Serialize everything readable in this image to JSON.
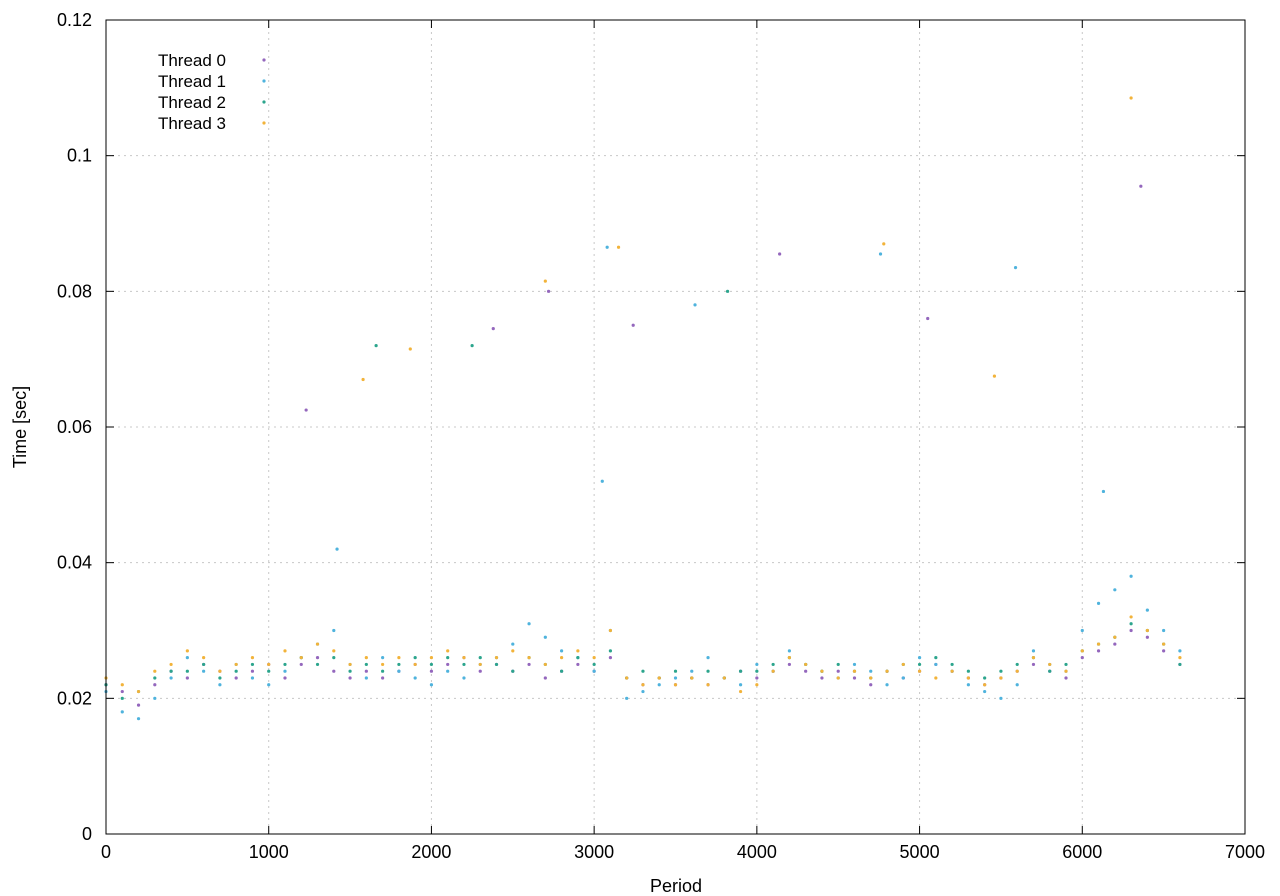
{
  "chart_data": {
    "type": "scatter",
    "xlabel": "Period",
    "ylabel": "Time [sec]",
    "xlim": [
      0,
      7000
    ],
    "ylim": [
      0,
      0.12
    ],
    "xticks": [
      "0",
      "1000",
      "2000",
      "3000",
      "4000",
      "5000",
      "6000",
      "7000"
    ],
    "yticks": [
      "0",
      "0.02",
      "0.04",
      "0.06",
      "0.08",
      "0.1",
      "0.12"
    ],
    "grid": true,
    "legend_position": "top-left",
    "series": [
      {
        "name": "Thread 0",
        "color": "#9467bd",
        "points": [
          [
            0,
            0.022
          ],
          [
            100,
            0.021
          ],
          [
            200,
            0.019
          ],
          [
            300,
            0.022
          ],
          [
            400,
            0.024
          ],
          [
            500,
            0.023
          ],
          [
            600,
            0.025
          ],
          [
            700,
            0.024
          ],
          [
            800,
            0.023
          ],
          [
            900,
            0.024
          ],
          [
            1000,
            0.025
          ],
          [
            1100,
            0.023
          ],
          [
            1200,
            0.025
          ],
          [
            1300,
            0.026
          ],
          [
            1400,
            0.024
          ],
          [
            1500,
            0.023
          ],
          [
            1600,
            0.024
          ],
          [
            1700,
            0.023
          ],
          [
            1800,
            0.024
          ],
          [
            1900,
            0.025
          ],
          [
            2000,
            0.024
          ],
          [
            2100,
            0.025
          ],
          [
            2200,
            0.026
          ],
          [
            2300,
            0.024
          ],
          [
            2400,
            0.025
          ],
          [
            2500,
            0.024
          ],
          [
            2600,
            0.025
          ],
          [
            2700,
            0.023
          ],
          [
            2800,
            0.024
          ],
          [
            2900,
            0.025
          ],
          [
            3000,
            0.024
          ],
          [
            3100,
            0.026
          ],
          [
            3200,
            0.023
          ],
          [
            3300,
            0.022
          ],
          [
            3400,
            0.023
          ],
          [
            3500,
            0.022
          ],
          [
            3600,
            0.023
          ],
          [
            3700,
            0.022
          ],
          [
            3800,
            0.023
          ],
          [
            3900,
            0.024
          ],
          [
            4000,
            0.023
          ],
          [
            4100,
            0.024
          ],
          [
            4200,
            0.025
          ],
          [
            4300,
            0.024
          ],
          [
            4400,
            0.023
          ],
          [
            4500,
            0.024
          ],
          [
            4600,
            0.023
          ],
          [
            4700,
            0.022
          ],
          [
            4800,
            0.024
          ],
          [
            4900,
            0.023
          ],
          [
            5000,
            0.024
          ],
          [
            5100,
            0.025
          ],
          [
            5200,
            0.024
          ],
          [
            5300,
            0.023
          ],
          [
            5400,
            0.022
          ],
          [
            5500,
            0.023
          ],
          [
            5600,
            0.024
          ],
          [
            5700,
            0.025
          ],
          [
            5800,
            0.024
          ],
          [
            5900,
            0.023
          ],
          [
            6000,
            0.026
          ],
          [
            6100,
            0.027
          ],
          [
            6200,
            0.028
          ],
          [
            6300,
            0.03
          ],
          [
            6400,
            0.029
          ],
          [
            6500,
            0.027
          ],
          [
            6600,
            0.025
          ],
          [
            1230,
            0.0625
          ],
          [
            2380,
            0.0745
          ],
          [
            3240,
            0.075
          ],
          [
            5050,
            0.076
          ],
          [
            6360,
            0.0955
          ],
          [
            2720,
            0.08
          ],
          [
            4140,
            0.0855
          ]
        ]
      },
      {
        "name": "Thread 1",
        "color": "#4fb3dd",
        "points": [
          [
            0,
            0.021
          ],
          [
            100,
            0.018
          ],
          [
            200,
            0.017
          ],
          [
            300,
            0.02
          ],
          [
            400,
            0.023
          ],
          [
            500,
            0.026
          ],
          [
            600,
            0.024
          ],
          [
            700,
            0.022
          ],
          [
            800,
            0.025
          ],
          [
            900,
            0.023
          ],
          [
            1000,
            0.022
          ],
          [
            1100,
            0.024
          ],
          [
            1200,
            0.026
          ],
          [
            1300,
            0.028
          ],
          [
            1400,
            0.03
          ],
          [
            1500,
            0.025
          ],
          [
            1600,
            0.023
          ],
          [
            1700,
            0.026
          ],
          [
            1800,
            0.024
          ],
          [
            1900,
            0.023
          ],
          [
            2000,
            0.022
          ],
          [
            2100,
            0.024
          ],
          [
            2200,
            0.023
          ],
          [
            2300,
            0.025
          ],
          [
            2400,
            0.026
          ],
          [
            2500,
            0.028
          ],
          [
            2600,
            0.031
          ],
          [
            2700,
            0.029
          ],
          [
            2800,
            0.027
          ],
          [
            2900,
            0.026
          ],
          [
            3000,
            0.024
          ],
          [
            3100,
            0.03
          ],
          [
            3200,
            0.02
          ],
          [
            3300,
            0.021
          ],
          [
            3400,
            0.022
          ],
          [
            3500,
            0.023
          ],
          [
            3600,
            0.024
          ],
          [
            3700,
            0.026
          ],
          [
            3800,
            0.023
          ],
          [
            3900,
            0.022
          ],
          [
            4000,
            0.025
          ],
          [
            4100,
            0.024
          ],
          [
            4200,
            0.027
          ],
          [
            4300,
            0.025
          ],
          [
            4400,
            0.024
          ],
          [
            4500,
            0.023
          ],
          [
            4600,
            0.025
          ],
          [
            4700,
            0.024
          ],
          [
            4800,
            0.022
          ],
          [
            4900,
            0.023
          ],
          [
            5000,
            0.026
          ],
          [
            5100,
            0.025
          ],
          [
            5200,
            0.024
          ],
          [
            5300,
            0.022
          ],
          [
            5400,
            0.021
          ],
          [
            5500,
            0.02
          ],
          [
            5600,
            0.022
          ],
          [
            5700,
            0.027
          ],
          [
            5800,
            0.025
          ],
          [
            5900,
            0.024
          ],
          [
            6000,
            0.03
          ],
          [
            6100,
            0.034
          ],
          [
            6200,
            0.036
          ],
          [
            6300,
            0.038
          ],
          [
            6400,
            0.033
          ],
          [
            6500,
            0.03
          ],
          [
            6600,
            0.027
          ],
          [
            1420,
            0.042
          ],
          [
            3050,
            0.052
          ],
          [
            3080,
            0.0865
          ],
          [
            3620,
            0.078
          ],
          [
            4760,
            0.0855
          ],
          [
            5590,
            0.0835
          ],
          [
            6130,
            0.0505
          ]
        ]
      },
      {
        "name": "Thread 2",
        "color": "#2ca58d",
        "points": [
          [
            0,
            0.022
          ],
          [
            100,
            0.02
          ],
          [
            200,
            0.021
          ],
          [
            300,
            0.023
          ],
          [
            400,
            0.024
          ],
          [
            500,
            0.024
          ],
          [
            600,
            0.025
          ],
          [
            700,
            0.023
          ],
          [
            800,
            0.024
          ],
          [
            900,
            0.025
          ],
          [
            1000,
            0.024
          ],
          [
            1100,
            0.025
          ],
          [
            1200,
            0.026
          ],
          [
            1300,
            0.025
          ],
          [
            1400,
            0.026
          ],
          [
            1500,
            0.024
          ],
          [
            1600,
            0.025
          ],
          [
            1700,
            0.024
          ],
          [
            1800,
            0.025
          ],
          [
            1900,
            0.026
          ],
          [
            2000,
            0.025
          ],
          [
            2100,
            0.026
          ],
          [
            2200,
            0.025
          ],
          [
            2300,
            0.026
          ],
          [
            2400,
            0.025
          ],
          [
            2500,
            0.024
          ],
          [
            2600,
            0.026
          ],
          [
            2700,
            0.025
          ],
          [
            2800,
            0.024
          ],
          [
            2900,
            0.026
          ],
          [
            3000,
            0.025
          ],
          [
            3100,
            0.027
          ],
          [
            3200,
            0.023
          ],
          [
            3300,
            0.024
          ],
          [
            3400,
            0.023
          ],
          [
            3500,
            0.024
          ],
          [
            3600,
            0.023
          ],
          [
            3700,
            0.024
          ],
          [
            3800,
            0.023
          ],
          [
            3900,
            0.024
          ],
          [
            4000,
            0.024
          ],
          [
            4100,
            0.025
          ],
          [
            4200,
            0.026
          ],
          [
            4300,
            0.025
          ],
          [
            4400,
            0.024
          ],
          [
            4500,
            0.025
          ],
          [
            4600,
            0.024
          ],
          [
            4700,
            0.023
          ],
          [
            4800,
            0.024
          ],
          [
            4900,
            0.025
          ],
          [
            5000,
            0.025
          ],
          [
            5100,
            0.026
          ],
          [
            5200,
            0.025
          ],
          [
            5300,
            0.024
          ],
          [
            5400,
            0.023
          ],
          [
            5500,
            0.024
          ],
          [
            5600,
            0.025
          ],
          [
            5700,
            0.026
          ],
          [
            5800,
            0.024
          ],
          [
            5900,
            0.025
          ],
          [
            6000,
            0.027
          ],
          [
            6100,
            0.028
          ],
          [
            6200,
            0.029
          ],
          [
            6300,
            0.031
          ],
          [
            6400,
            0.03
          ],
          [
            6500,
            0.028
          ],
          [
            6600,
            0.025
          ],
          [
            1660,
            0.072
          ],
          [
            2250,
            0.072
          ],
          [
            3820,
            0.08
          ]
        ]
      },
      {
        "name": "Thread 3",
        "color": "#f2b33a",
        "points": [
          [
            0,
            0.023
          ],
          [
            100,
            0.022
          ],
          [
            200,
            0.021
          ],
          [
            300,
            0.024
          ],
          [
            400,
            0.025
          ],
          [
            500,
            0.027
          ],
          [
            600,
            0.026
          ],
          [
            700,
            0.024
          ],
          [
            800,
            0.025
          ],
          [
            900,
            0.026
          ],
          [
            1000,
            0.025
          ],
          [
            1100,
            0.027
          ],
          [
            1200,
            0.026
          ],
          [
            1300,
            0.028
          ],
          [
            1400,
            0.027
          ],
          [
            1500,
            0.025
          ],
          [
            1600,
            0.026
          ],
          [
            1700,
            0.025
          ],
          [
            1800,
            0.026
          ],
          [
            1900,
            0.025
          ],
          [
            2000,
            0.026
          ],
          [
            2100,
            0.027
          ],
          [
            2200,
            0.026
          ],
          [
            2300,
            0.025
          ],
          [
            2400,
            0.026
          ],
          [
            2500,
            0.027
          ],
          [
            2600,
            0.026
          ],
          [
            2700,
            0.025
          ],
          [
            2800,
            0.026
          ],
          [
            2900,
            0.027
          ],
          [
            3000,
            0.026
          ],
          [
            3100,
            0.03
          ],
          [
            3200,
            0.023
          ],
          [
            3300,
            0.022
          ],
          [
            3400,
            0.023
          ],
          [
            3500,
            0.022
          ],
          [
            3600,
            0.023
          ],
          [
            3700,
            0.022
          ],
          [
            3800,
            0.023
          ],
          [
            3900,
            0.021
          ],
          [
            4000,
            0.022
          ],
          [
            4100,
            0.024
          ],
          [
            4200,
            0.026
          ],
          [
            4300,
            0.025
          ],
          [
            4400,
            0.024
          ],
          [
            4500,
            0.023
          ],
          [
            4600,
            0.024
          ],
          [
            4700,
            0.023
          ],
          [
            4800,
            0.024
          ],
          [
            4900,
            0.025
          ],
          [
            5000,
            0.024
          ],
          [
            5100,
            0.023
          ],
          [
            5200,
            0.024
          ],
          [
            5300,
            0.023
          ],
          [
            5400,
            0.022
          ],
          [
            5500,
            0.023
          ],
          [
            5600,
            0.024
          ],
          [
            5700,
            0.026
          ],
          [
            5800,
            0.025
          ],
          [
            5900,
            0.024
          ],
          [
            6000,
            0.027
          ],
          [
            6100,
            0.028
          ],
          [
            6200,
            0.029
          ],
          [
            6300,
            0.032
          ],
          [
            6400,
            0.03
          ],
          [
            6500,
            0.028
          ],
          [
            6600,
            0.026
          ],
          [
            1870,
            0.0715
          ],
          [
            2700,
            0.0815
          ],
          [
            3150,
            0.0865
          ],
          [
            4780,
            0.087
          ],
          [
            5460,
            0.0675
          ],
          [
            6300,
            0.1085
          ],
          [
            1580,
            0.067
          ]
        ]
      }
    ]
  }
}
